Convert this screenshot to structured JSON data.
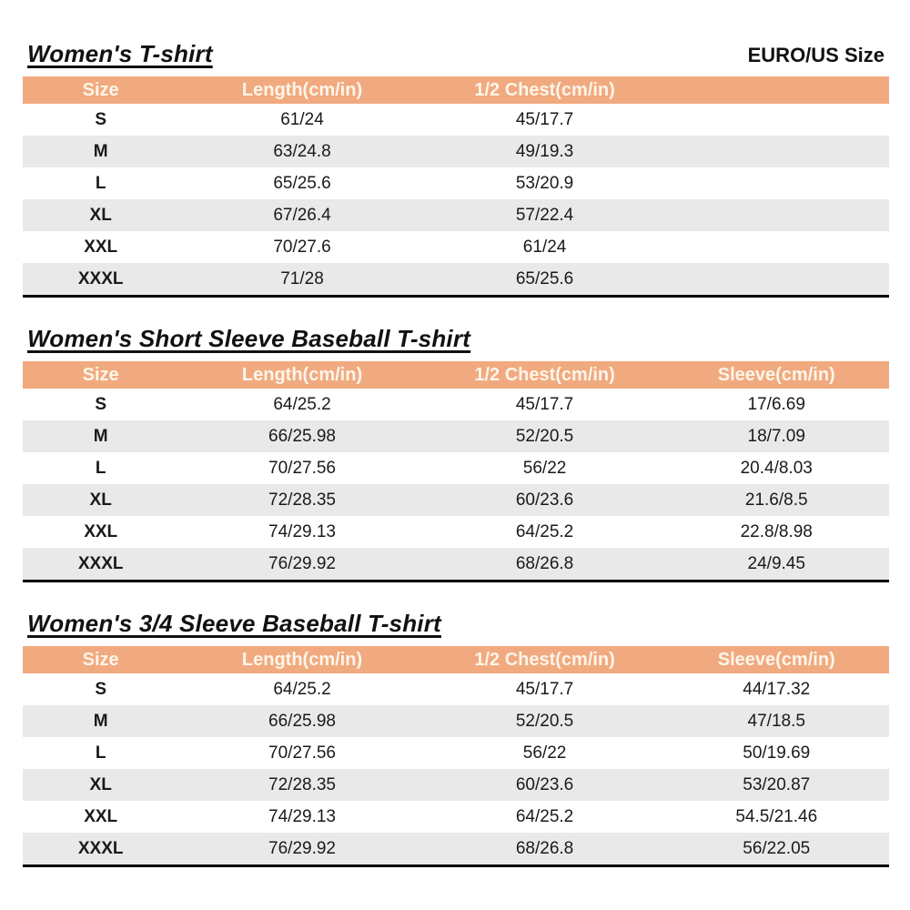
{
  "page": {
    "size_standard_label": "EURO/US Size"
  },
  "colors": {
    "header_bg": "#F1AA7F",
    "header_text": "#FCF5EA",
    "row_alt_bg": "#E9E9E9",
    "row_bg": "#FFFFFF",
    "body_text": "#1A1A1A",
    "table_bottom_border": "#000000"
  },
  "tables": [
    {
      "title": "Women's T-shirt",
      "columns": [
        "Size",
        "Length(cm/in)",
        "1/2 Chest(cm/in)",
        ""
      ],
      "rows": [
        [
          "S",
          "61/24",
          "45/17.7",
          ""
        ],
        [
          "M",
          "63/24.8",
          "49/19.3",
          ""
        ],
        [
          "L",
          "65/25.6",
          "53/20.9",
          ""
        ],
        [
          "XL",
          "67/26.4",
          "57/22.4",
          ""
        ],
        [
          "XXL",
          "70/27.6",
          "61/24",
          ""
        ],
        [
          "XXXL",
          "71/28",
          "65/25.6",
          ""
        ]
      ]
    },
    {
      "title": "Women's Short Sleeve Baseball T-shirt",
      "columns": [
        "Size",
        "Length(cm/in)",
        "1/2 Chest(cm/in)",
        "Sleeve(cm/in)"
      ],
      "rows": [
        [
          "S",
          "64/25.2",
          "45/17.7",
          "17/6.69"
        ],
        [
          "M",
          "66/25.98",
          "52/20.5",
          "18/7.09"
        ],
        [
          "L",
          "70/27.56",
          "56/22",
          "20.4/8.03"
        ],
        [
          "XL",
          "72/28.35",
          "60/23.6",
          "21.6/8.5"
        ],
        [
          "XXL",
          "74/29.13",
          "64/25.2",
          "22.8/8.98"
        ],
        [
          "XXXL",
          "76/29.92",
          "68/26.8",
          "24/9.45"
        ]
      ]
    },
    {
      "title": "Women's 3/4 Sleeve Baseball T-shirt",
      "columns": [
        "Size",
        "Length(cm/in)",
        "1/2 Chest(cm/in)",
        "Sleeve(cm/in)"
      ],
      "rows": [
        [
          "S",
          "64/25.2",
          "45/17.7",
          "44/17.32"
        ],
        [
          "M",
          "66/25.98",
          "52/20.5",
          "47/18.5"
        ],
        [
          "L",
          "70/27.56",
          "56/22",
          "50/19.69"
        ],
        [
          "XL",
          "72/28.35",
          "60/23.6",
          "53/20.87"
        ],
        [
          "XXL",
          "74/29.13",
          "64/25.2",
          "54.5/21.46"
        ],
        [
          "XXXL",
          "76/29.92",
          "68/26.8",
          "56/22.05"
        ]
      ]
    }
  ]
}
